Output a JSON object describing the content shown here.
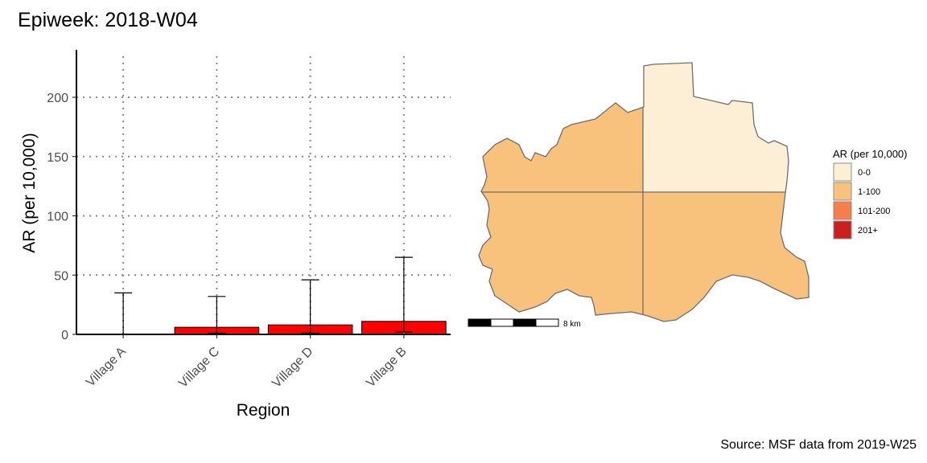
{
  "title": "Epiweek: 2018-W04",
  "caption": "Source: MSF data from 2019-W25",
  "chart_data": {
    "type": "bar",
    "categories": [
      "Village A",
      "Village C",
      "Village D",
      "Village B"
    ],
    "values": [
      0,
      6,
      8,
      11
    ],
    "error_upper": [
      35,
      32,
      46,
      65
    ],
    "error_lower": [
      0,
      1,
      1,
      2
    ],
    "xlabel": "Region",
    "ylabel": "AR (per 10,000)",
    "ylim": [
      0,
      240
    ],
    "yticks": [
      0,
      50,
      100,
      150,
      200
    ],
    "grid": "dotted",
    "bar_color": "#ff0000"
  },
  "map": {
    "legend_title": "AR (per 10,000)",
    "legend": [
      {
        "label": "0-0",
        "color": "#fcefd6"
      },
      {
        "label": "1-100",
        "color": "#f9c27c"
      },
      {
        "label": "101-200",
        "color": "#f97d4c"
      },
      {
        "label": "201+",
        "color": "#cd1e1e"
      }
    ],
    "regions": [
      {
        "quadrant": "north-west",
        "class": "1-100"
      },
      {
        "quadrant": "north-east",
        "class": "0-0"
      },
      {
        "quadrant": "south-west",
        "class": "1-100"
      },
      {
        "quadrant": "south-east",
        "class": "1-100"
      }
    ],
    "scale_label": "8 km"
  }
}
